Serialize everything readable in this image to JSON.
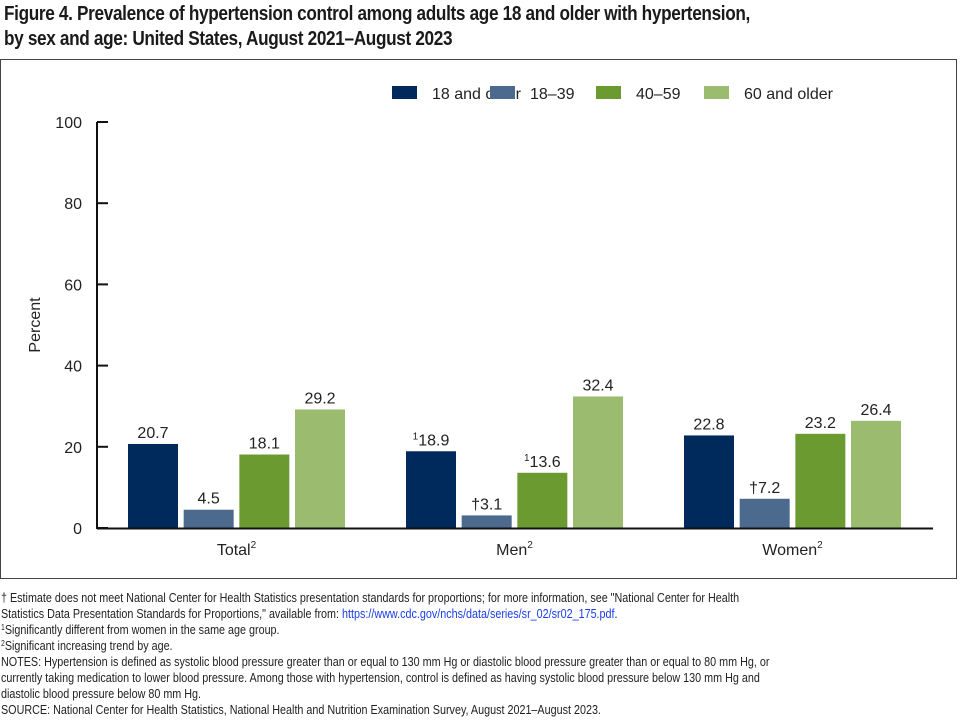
{
  "title_line1": "Figure 4. Prevalence of hypertension control among adults age 18 and older with hypertension,",
  "title_line2": "by sex and age: United States, August 2021–August 2023",
  "chart_data": {
    "type": "bar",
    "title": "Prevalence of hypertension control among adults age 18 and older with hypertension, by sex and age: United States, August 2021–August 2023",
    "xlabel": "",
    "ylabel": "Percent",
    "ylim": [
      0,
      100
    ],
    "yticks": [
      0,
      20,
      40,
      60,
      80,
      100
    ],
    "grid": false,
    "legend_position": "top-right",
    "categories": [
      "Total",
      "Men",
      "Women"
    ],
    "category_superscripts": [
      "2",
      "2",
      "2"
    ],
    "series": [
      {
        "name": "18 and older",
        "color": "#002a5c",
        "values": [
          20.7,
          18.9,
          22.8
        ],
        "label_prefix": [
          "",
          "1",
          ""
        ]
      },
      {
        "name": "18–39",
        "color": "#4b6a8e",
        "values": [
          4.5,
          3.1,
          7.2
        ],
        "label_prefix": [
          "",
          "†",
          "†"
        ]
      },
      {
        "name": "40–59",
        "color": "#6b9a31",
        "values": [
          18.1,
          13.6,
          23.2
        ],
        "label_prefix": [
          "",
          "1",
          ""
        ]
      },
      {
        "name": "60 and older",
        "color": "#9bbb6e",
        "values": [
          29.2,
          32.4,
          26.4
        ],
        "label_prefix": [
          "",
          "",
          ""
        ]
      }
    ]
  },
  "footnotes": {
    "dagger_text": "† Estimate does not meet National Center for Health Statistics presentation standards for proportions; for more information, see \"National Center for Health",
    "dagger_text2": "Statistics Data Presentation Standards for Proportions,\" available from: ",
    "dagger_link": "https://www.cdc.gov/nchs/data/series/sr_02/sr02_175.pdf",
    "dagger_end": ".",
    "note1_mark": "1",
    "note1": "Significantly different from women in the same age group.",
    "note2_mark": "2",
    "note2": "Significant increasing trend by age.",
    "notes_line1": "NOTES: Hypertension is defined as systolic blood pressure greater than or equal to 130 mm Hg or diastolic blood pressure greater than or equal to 80 mm Hg, or",
    "notes_line2": "currently taking medication to lower blood pressure. Among those with hypertension, control is defined as having systolic blood pressure below 130 mm Hg and",
    "notes_line3": "diastolic blood pressure below 80 mm Hg.",
    "source": "SOURCE: National Center for Health Statistics, National Health and Nutrition Examination Survey, August 2021–August 2023."
  }
}
